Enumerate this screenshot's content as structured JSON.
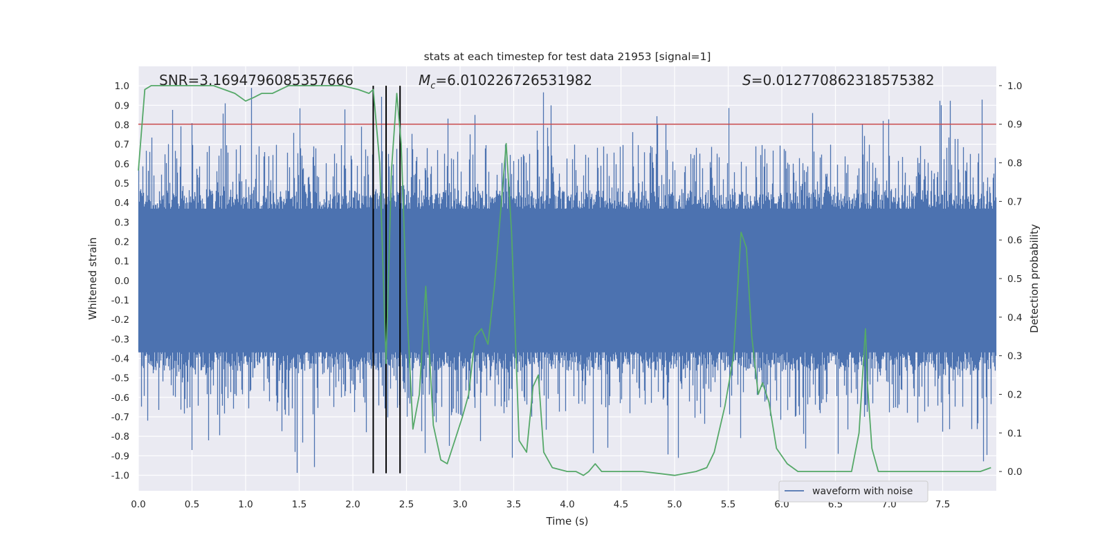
{
  "chart_data": {
    "type": "line",
    "title": "stats at each timestep for test data 21953 [signal=1]",
    "xlabel": "Time (s)",
    "ylabel": "Whitened strain",
    "y2label": "Detection probability",
    "xlim": [
      0.0,
      8.0
    ],
    "ylim": [
      -1.08,
      1.1
    ],
    "y2lim": [
      -0.05,
      1.05
    ],
    "xticks": [
      "0.0",
      "0.5",
      "1.0",
      "1.5",
      "2.0",
      "2.5",
      "3.0",
      "3.5",
      "4.0",
      "4.5",
      "5.0",
      "5.5",
      "6.0",
      "6.5",
      "7.0",
      "7.5"
    ],
    "yticks": [
      "1.0",
      "0.9",
      "0.8",
      "0.7",
      "0.6",
      "0.5",
      "0.4",
      "0.3",
      "0.2",
      "0.1",
      "0.0",
      "-0.1",
      "-0.2",
      "-0.3",
      "-0.4",
      "-0.5",
      "-0.6",
      "-0.7",
      "-0.8",
      "-0.9",
      "-1.0"
    ],
    "y2ticks": [
      "1.0",
      "0.9",
      "0.8",
      "0.7",
      "0.6",
      "0.5",
      "0.4",
      "0.3",
      "0.2",
      "0.1",
      "0.0"
    ],
    "annotations": {
      "snr": "SNR=3.1694796085357666",
      "mc_symbol": "M",
      "mc_sub": "c",
      "mc_value": "=6.010226726531982",
      "s_symbol": "S",
      "s_value": "=0.012770862318575382"
    },
    "threshold": {
      "y2": 0.9,
      "color": "#c44e52"
    },
    "vertical_lines": {
      "x": [
        2.19,
        2.31,
        2.44
      ],
      "y_range": [
        -0.99,
        1.0
      ],
      "color": "#000000"
    },
    "legend": {
      "label": "waveform with noise",
      "position": "lower-right"
    },
    "series": [
      {
        "name": "waveform with noise",
        "axis": "left",
        "color": "#4c72b0",
        "style": "dense-noise",
        "envelope_upper": 0.45,
        "envelope_lower": -0.45,
        "peak_max": 1.0,
        "peak_min": -0.99
      },
      {
        "name": "Detection probability",
        "axis": "right",
        "color": "#55a868",
        "x": [
          0.0,
          0.06,
          0.12,
          0.2,
          0.3,
          0.5,
          0.7,
          0.8,
          0.9,
          1.0,
          1.08,
          1.15,
          1.25,
          1.4,
          1.6,
          1.9,
          2.05,
          2.15,
          2.19,
          2.25,
          2.31,
          2.36,
          2.41,
          2.45,
          2.5,
          2.56,
          2.62,
          2.68,
          2.75,
          2.82,
          2.88,
          2.95,
          3.02,
          3.08,
          3.14,
          3.2,
          3.26,
          3.32,
          3.38,
          3.43,
          3.48,
          3.55,
          3.62,
          3.68,
          3.73,
          3.78,
          3.86,
          4.0,
          4.08,
          4.15,
          4.2,
          4.26,
          4.32,
          4.4,
          4.5,
          4.7,
          5.0,
          5.2,
          5.3,
          5.37,
          5.47,
          5.55,
          5.62,
          5.67,
          5.72,
          5.78,
          5.82,
          5.88,
          5.95,
          6.05,
          6.15,
          6.3,
          6.5,
          6.65,
          6.72,
          6.78,
          6.8,
          6.84,
          6.9,
          7.2,
          7.6,
          7.85,
          7.95
        ],
        "y": [
          0.78,
          0.99,
          1.0,
          1.0,
          1.0,
          1.0,
          1.0,
          0.99,
          0.98,
          0.96,
          0.97,
          0.98,
          0.98,
          1.0,
          1.0,
          1.0,
          0.99,
          0.98,
          0.99,
          0.8,
          0.28,
          0.78,
          0.98,
          0.85,
          0.45,
          0.11,
          0.2,
          0.48,
          0.12,
          0.03,
          0.02,
          0.08,
          0.14,
          0.2,
          0.35,
          0.37,
          0.33,
          0.48,
          0.68,
          0.85,
          0.62,
          0.08,
          0.05,
          0.22,
          0.25,
          0.05,
          0.01,
          0.0,
          0.0,
          -0.01,
          0.0,
          0.02,
          0.0,
          0.0,
          0.0,
          0.0,
          -0.01,
          0.0,
          0.01,
          0.05,
          0.17,
          0.3,
          0.62,
          0.58,
          0.35,
          0.2,
          0.23,
          0.18,
          0.06,
          0.02,
          0.0,
          0.0,
          0.0,
          0.0,
          0.1,
          0.37,
          0.22,
          0.06,
          0.0,
          0.0,
          0.0,
          0.0,
          0.01
        ]
      }
    ]
  }
}
